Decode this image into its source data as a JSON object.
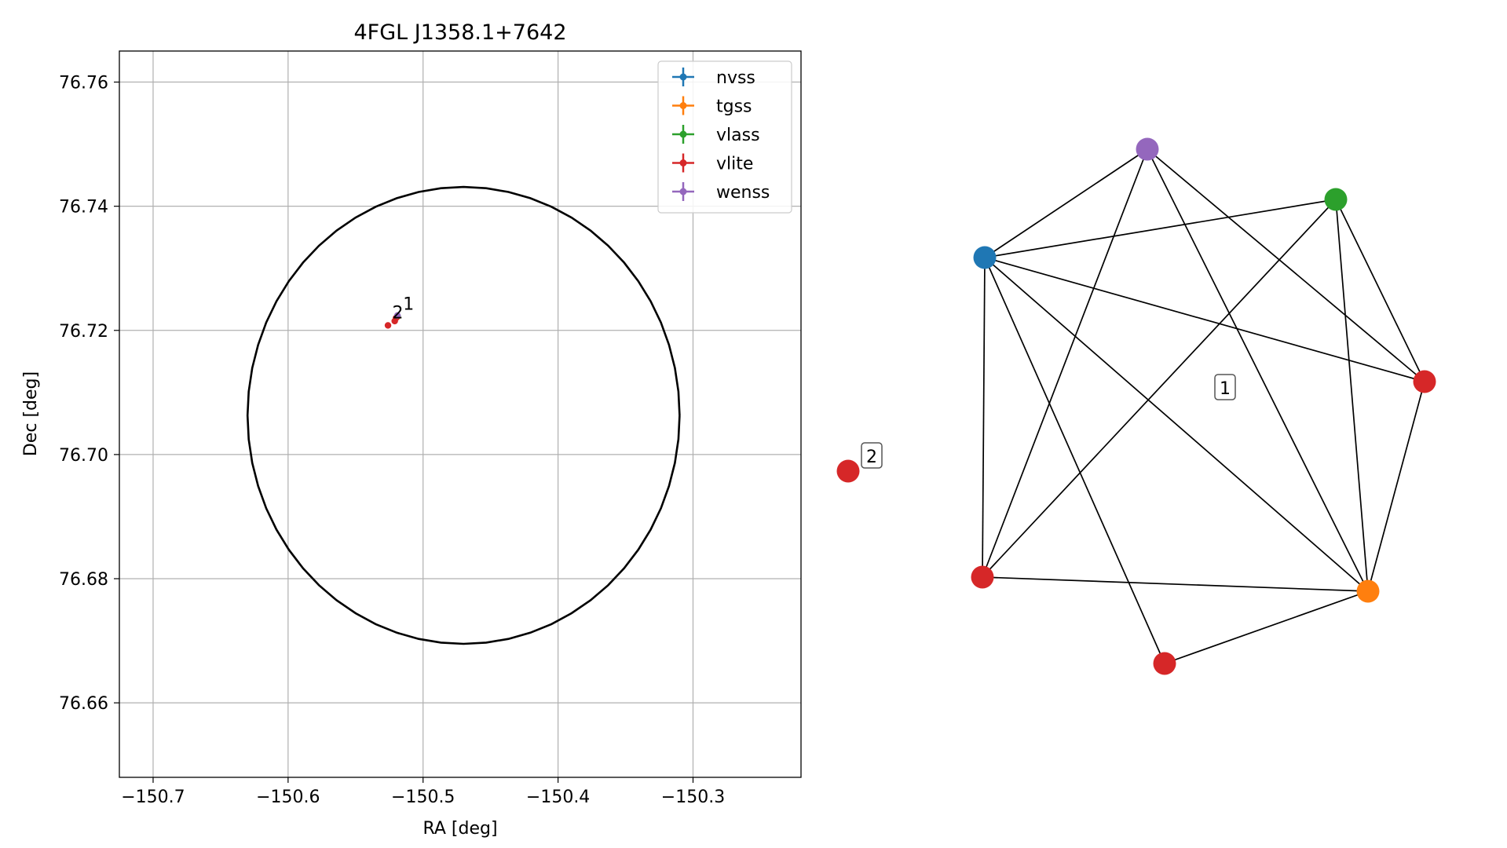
{
  "chart_data": [
    {
      "type": "scatter",
      "title": "4FGL J1358.1+7642",
      "xlabel": "RA [deg]",
      "ylabel": "Dec [deg]",
      "xlim": [
        -150.725,
        -150.22
      ],
      "ylim": [
        76.648,
        76.765
      ],
      "xticks": [
        -150.7,
        -150.6,
        -150.5,
        -150.4,
        -150.3
      ],
      "xtick_labels": [
        "−150.7",
        "−150.6",
        "−150.5",
        "−150.4",
        "−150.3"
      ],
      "yticks": [
        76.66,
        76.68,
        76.7,
        76.72,
        76.74,
        76.76
      ],
      "ytick_labels": [
        "76.66",
        "76.68",
        "76.70",
        "76.72",
        "76.74",
        "76.76"
      ],
      "grid": true,
      "legend": {
        "placement": "top-right",
        "entries": [
          {
            "name": "nvss",
            "color": "#1f77b4"
          },
          {
            "name": "tgss",
            "color": "#ff7f0e"
          },
          {
            "name": "vlass",
            "color": "#2ca02c"
          },
          {
            "name": "vlite",
            "color": "#d62728"
          },
          {
            "name": "wenss",
            "color": "#9467bd"
          }
        ]
      },
      "circle": {
        "center_ra": -150.47,
        "center_dec": 76.7063,
        "radius_dec": 0.0368
      },
      "points": [
        {
          "survey": "nvss",
          "ra": -150.519,
          "dec": 76.7223,
          "color": "#1f77b4"
        },
        {
          "survey": "tgss",
          "ra": -150.519,
          "dec": 76.7222,
          "color": "#ff7f0e"
        },
        {
          "survey": "vlass",
          "ra": -150.519,
          "dec": 76.7223,
          "color": "#2ca02c"
        },
        {
          "survey": "vlite",
          "ra": -150.521,
          "dec": 76.7215,
          "color": "#d62728"
        },
        {
          "survey": "vlite",
          "ra": -150.52,
          "dec": 76.722,
          "color": "#d62728"
        },
        {
          "survey": "vlite",
          "ra": -150.526,
          "dec": 76.7208,
          "color": "#d62728"
        },
        {
          "survey": "wenss",
          "ra": -150.519,
          "dec": 76.7224,
          "color": "#9467bd"
        }
      ],
      "annotations": [
        {
          "text": "1",
          "ra": -150.516,
          "dec": 76.7227
        },
        {
          "text": "2",
          "ra": -150.524,
          "dec": 76.7213
        }
      ]
    },
    {
      "type": "network",
      "nodes": [
        {
          "id": "wenss",
          "color": "#9467bd"
        },
        {
          "id": "vlass",
          "color": "#2ca02c"
        },
        {
          "id": "nvss",
          "color": "#1f77b4"
        },
        {
          "id": "vlite_a",
          "color": "#d62728"
        },
        {
          "id": "vlite_b",
          "color": "#d62728"
        },
        {
          "id": "tgss",
          "color": "#ff7f0e"
        },
        {
          "id": "vlite_c",
          "color": "#d62728"
        },
        {
          "id": "vlite_iso",
          "color": "#d62728"
        }
      ],
      "edges": [
        [
          "wenss",
          "nvss"
        ],
        [
          "wenss",
          "vlite_b"
        ],
        [
          "wenss",
          "vlite_a"
        ],
        [
          "wenss",
          "tgss"
        ],
        [
          "vlass",
          "nvss"
        ],
        [
          "vlass",
          "vlite_b"
        ],
        [
          "vlass",
          "vlite_a"
        ],
        [
          "vlass",
          "tgss"
        ],
        [
          "nvss",
          "vlite_a"
        ],
        [
          "nvss",
          "vlite_b"
        ],
        [
          "nvss",
          "tgss"
        ],
        [
          "nvss",
          "vlite_c"
        ],
        [
          "vlite_a",
          "tgss"
        ],
        [
          "vlite_b",
          "tgss"
        ],
        [
          "tgss",
          "vlite_c"
        ]
      ],
      "labels": [
        {
          "text": "1"
        },
        {
          "text": "2"
        }
      ]
    }
  ]
}
